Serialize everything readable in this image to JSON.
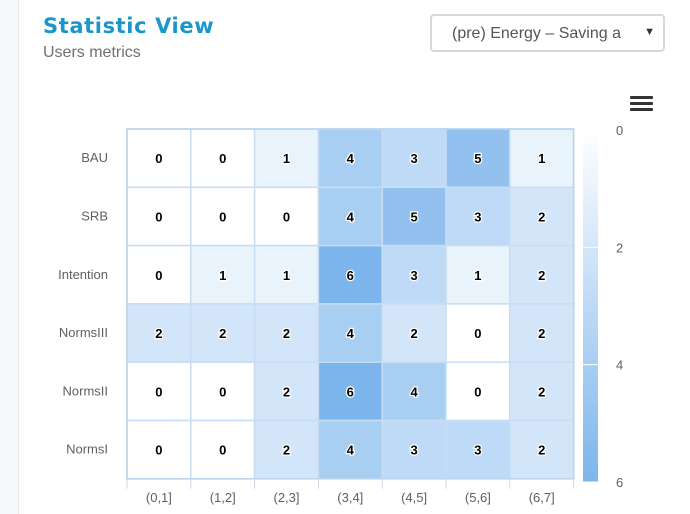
{
  "header": {
    "title": "Statistic View",
    "subtitle": "Users metrics"
  },
  "selector": {
    "value": "(pre) Energy – Saving a"
  },
  "toolbar": {
    "menu_icon": "hamburger-menu-icon"
  },
  "chart_data": {
    "type": "heatmap",
    "x_categories": [
      "(0,1]",
      "(1,2]",
      "(2,3]",
      "(3,4]",
      "(4,5]",
      "(5,6]",
      "(6,7]"
    ],
    "y_categories": [
      "BAU",
      "SRB",
      "Intention",
      "NormsIII",
      "NormsII",
      "NormsI"
    ],
    "values": [
      [
        0,
        0,
        1,
        4,
        3,
        5,
        1
      ],
      [
        0,
        0,
        0,
        4,
        5,
        3,
        2
      ],
      [
        0,
        1,
        1,
        6,
        3,
        1,
        2
      ],
      [
        2,
        2,
        2,
        4,
        2,
        0,
        2
      ],
      [
        0,
        0,
        2,
        6,
        4,
        0,
        2
      ],
      [
        0,
        0,
        2,
        4,
        3,
        3,
        2
      ]
    ],
    "color_axis": {
      "min": 0,
      "max": 6,
      "ticks": [
        "0",
        "2",
        "4",
        "6"
      ],
      "min_color": "#ffffff",
      "max_color": "#7cb5ec"
    },
    "grid": false
  }
}
